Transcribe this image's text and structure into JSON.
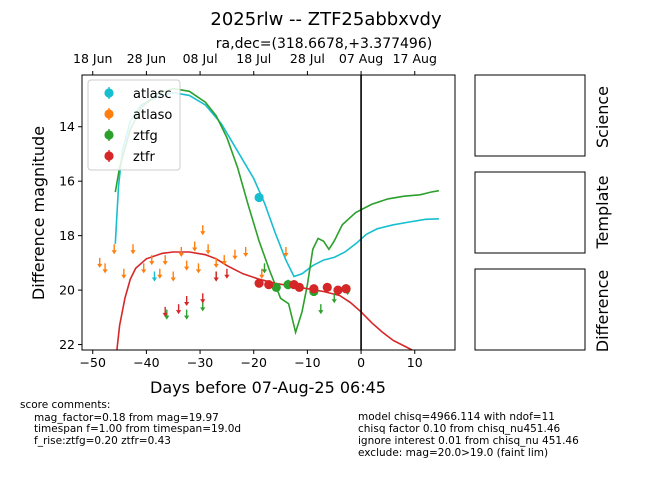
{
  "chart_data": {
    "type": "scatter",
    "title": "2025rlw -- ZTF25abbxvdy",
    "subtitle": "ra,dec=(318.6678,+3.377496)",
    "xlabel": "Days before 07-Aug-25 06:45",
    "ylabel": "Difference magnitude",
    "xlim": [
      -52,
      17.5
    ],
    "ylim": [
      22.2,
      12.1
    ],
    "y_inverted": true,
    "xticks": [
      -50,
      -40,
      -30,
      -20,
      -10,
      0,
      10
    ],
    "yticks": [
      14,
      16,
      18,
      20,
      22
    ],
    "top_axis": {
      "labels": [
        "18 Jun",
        "28 Jun",
        "08 Jul",
        "18 Jul",
        "28 Jul",
        "07 Aug",
        "17 Aug"
      ],
      "positions": [
        -50,
        -40,
        -30,
        -20,
        -10,
        0,
        10
      ]
    },
    "vline_x": 0,
    "legend": {
      "position": "top-left",
      "entries": [
        {
          "name": "atlasc",
          "color": "#17becf"
        },
        {
          "name": "atlaso",
          "color": "#ff7f0e"
        },
        {
          "name": "ztfg",
          "color": "#2ca02c"
        },
        {
          "name": "ztfr",
          "color": "#d62728"
        }
      ]
    },
    "series": [
      {
        "name": "atlasc",
        "color": "#17becf",
        "points": [
          [
            -19,
            16.6,
            0.15
          ]
        ],
        "upper_limits": [
          [
            -38.5,
            19.5
          ],
          [
            -13.6,
            19.8
          ]
        ],
        "model": [
          [
            -45.8,
            18.3
          ],
          [
            -45.2,
            16.2
          ],
          [
            -44.5,
            14.9
          ],
          [
            -43,
            13.8
          ],
          [
            -41,
            13.2
          ],
          [
            -38,
            12.9
          ],
          [
            -35,
            12.75
          ],
          [
            -32,
            12.85
          ],
          [
            -29,
            13.2
          ],
          [
            -26,
            13.9
          ],
          [
            -23,
            14.9
          ],
          [
            -20,
            15.9
          ],
          [
            -18,
            16.8
          ],
          [
            -16,
            17.9
          ],
          [
            -14,
            18.9
          ],
          [
            -12.5,
            19.5
          ],
          [
            -11,
            19.4
          ],
          [
            -9,
            19.1
          ],
          [
            -7,
            18.9
          ],
          [
            -5,
            18.8
          ],
          [
            -3,
            18.6
          ],
          [
            -1,
            18.3
          ],
          [
            1,
            17.95
          ],
          [
            3,
            17.75
          ],
          [
            6,
            17.6
          ],
          [
            9,
            17.5
          ],
          [
            12,
            17.4
          ],
          [
            14.5,
            17.38
          ]
        ]
      },
      {
        "name": "atlaso",
        "color": "#ff7f0e",
        "points": [],
        "upper_limits": [
          [
            -48.7,
            19.0
          ],
          [
            -47.7,
            19.2
          ],
          [
            -46,
            18.5
          ],
          [
            -44.2,
            19.4
          ],
          [
            -42.5,
            18.5
          ],
          [
            -40.5,
            19.2
          ],
          [
            -39,
            18.9
          ],
          [
            -37.5,
            19.4
          ],
          [
            -36.5,
            18.9
          ],
          [
            -35,
            19.5
          ],
          [
            -33.5,
            18.6
          ],
          [
            -32.5,
            19.1
          ],
          [
            -31,
            18.4
          ],
          [
            -30.3,
            19.2
          ],
          [
            -29.5,
            17.8
          ],
          [
            -28.5,
            18.5
          ],
          [
            -27,
            19.0
          ],
          [
            -25.5,
            18.9
          ],
          [
            -23.5,
            18.7
          ],
          [
            -21.5,
            18.6
          ],
          [
            -18.5,
            19.4
          ],
          [
            -14,
            18.6
          ]
        ],
        "model": []
      },
      {
        "name": "ztfg",
        "color": "#2ca02c",
        "points": [
          [
            -15.8,
            19.9,
            0.1
          ],
          [
            -13.6,
            19.8,
            0.1
          ],
          [
            -8.8,
            20.05,
            0.1
          ],
          [
            -2.8,
            19.95,
            0.1
          ]
        ],
        "upper_limits": [
          [
            -36.2,
            20.9
          ],
          [
            -32.5,
            20.9
          ],
          [
            -29.5,
            20.6
          ],
          [
            -27,
            19.5
          ],
          [
            -18,
            19.2
          ],
          [
            -7.5,
            20.7
          ],
          [
            -5,
            20.3
          ],
          [
            -2.5,
            20.0
          ]
        ],
        "model": [
          [
            -45.8,
            16.4
          ],
          [
            -45,
            15.5
          ],
          [
            -43,
            14.1
          ],
          [
            -41,
            13.3
          ],
          [
            -38,
            12.8
          ],
          [
            -35,
            12.6
          ],
          [
            -32,
            12.7
          ],
          [
            -29,
            13.1
          ],
          [
            -27,
            13.6
          ],
          [
            -25,
            14.4
          ],
          [
            -23,
            15.5
          ],
          [
            -21,
            16.9
          ],
          [
            -19,
            18.2
          ],
          [
            -17,
            19.3
          ],
          [
            -15,
            20.3
          ],
          [
            -13.5,
            20.5
          ],
          [
            -12.2,
            21.55
          ],
          [
            -11,
            20.8
          ],
          [
            -10,
            19.8
          ],
          [
            -9,
            18.5
          ],
          [
            -8,
            18.1
          ],
          [
            -7,
            18.2
          ],
          [
            -6,
            18.5
          ],
          [
            -5,
            18.2
          ],
          [
            -3.5,
            17.6
          ],
          [
            -1,
            17.15
          ],
          [
            2,
            16.85
          ],
          [
            5,
            16.65
          ],
          [
            8,
            16.55
          ],
          [
            11,
            16.5
          ],
          [
            13,
            16.4
          ],
          [
            14.5,
            16.35
          ]
        ]
      },
      {
        "name": "ztfr",
        "color": "#d62728",
        "points": [
          [
            -19,
            19.75,
            0.12
          ],
          [
            -17.2,
            19.8,
            0.1
          ],
          [
            -12.5,
            19.8,
            0.1
          ],
          [
            -11.5,
            19.9,
            0.1
          ],
          [
            -8.8,
            19.95,
            0.1
          ],
          [
            -6.3,
            19.9,
            0.1
          ],
          [
            -4.3,
            20.0,
            0.1
          ],
          [
            -2.8,
            19.95,
            0.1
          ]
        ],
        "upper_limits": [
          [
            -36.5,
            20.8
          ],
          [
            -34,
            20.7
          ],
          [
            -32.5,
            20.4
          ],
          [
            -29.5,
            20.3
          ],
          [
            -27,
            19.5
          ],
          [
            -25,
            19.4
          ]
        ],
        "model": [
          [
            -45.5,
            22.2
          ],
          [
            -45,
            21.3
          ],
          [
            -44,
            20.3
          ],
          [
            -43,
            19.6
          ],
          [
            -42,
            19.2
          ],
          [
            -40,
            18.85
          ],
          [
            -37,
            18.65
          ],
          [
            -35,
            18.6
          ],
          [
            -32,
            18.6
          ],
          [
            -29,
            18.7
          ],
          [
            -27,
            18.85
          ],
          [
            -25,
            19.1
          ],
          [
            -22,
            19.4
          ],
          [
            -19,
            19.6
          ],
          [
            -16,
            19.75
          ],
          [
            -13,
            19.85
          ],
          [
            -10,
            19.95
          ],
          [
            -7,
            20.05
          ],
          [
            -4,
            20.2
          ],
          [
            -2,
            20.45
          ],
          [
            0,
            20.8
          ],
          [
            2,
            21.2
          ],
          [
            4,
            21.55
          ],
          [
            6,
            21.85
          ],
          [
            8,
            22.05
          ],
          [
            9.5,
            22.2
          ]
        ]
      }
    ]
  },
  "panels": {
    "science_label": "Science",
    "template_label": "Template",
    "difference_label": "Difference"
  },
  "comments": {
    "left": [
      "score comments:",
      "mag_factor=0.18 from mag=19.97",
      "timespan f=1.00 from timespan=19.0d",
      "f_rise:ztfg=0.20 ztfr=0.43"
    ],
    "right": [
      "model chisq=4966.114 with ndof=11",
      "chisq factor 0.10 from chisq_nu451.46",
      "ignore interest 0.01 from chisq_nu 451.46",
      "exclude: mag=20.0>19.0 (faint lim)"
    ]
  }
}
